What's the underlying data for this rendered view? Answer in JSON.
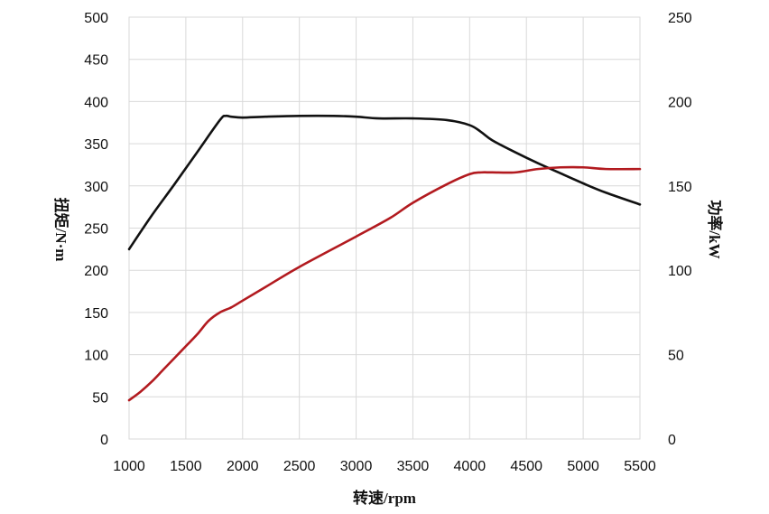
{
  "chart_data": {
    "type": "line",
    "title": "",
    "xlabel": "转速/rpm",
    "ylabel_left": "扭矩/N·m",
    "ylabel_right": "功率/kW",
    "xlim": [
      1000,
      5500
    ],
    "ylim_left": [
      0,
      500
    ],
    "ylim_right": [
      0,
      250
    ],
    "x_ticks": [
      1000,
      1500,
      2000,
      2500,
      3000,
      3500,
      4000,
      4500,
      5000,
      5500
    ],
    "y_left_ticks": [
      0,
      50,
      100,
      150,
      200,
      250,
      300,
      350,
      400,
      450,
      500
    ],
    "y_right_ticks": [
      0,
      50,
      100,
      150,
      200,
      250
    ],
    "grid": true,
    "series": [
      {
        "axis": "left",
        "color": "#111111",
        "x": [
          1000,
          1200,
          1400,
          1600,
          1800,
          1850,
          1900,
          2000,
          2200,
          2500,
          2800,
          3000,
          3200,
          3500,
          3800,
          4000,
          4100,
          4200,
          4400,
          4600,
          4800,
          5000,
          5200,
          5500
        ],
        "y": [
          225,
          265,
          302,
          340,
          378,
          383,
          382,
          381,
          382,
          383,
          383,
          382,
          380,
          380,
          378,
          372,
          364,
          354,
          340,
          327,
          315,
          303,
          292,
          278
        ]
      },
      {
        "axis": "right",
        "color": "#b21a1f",
        "x": [
          1000,
          1100,
          1200,
          1300,
          1400,
          1500,
          1600,
          1700,
          1800,
          1900,
          2000,
          2200,
          2500,
          3000,
          3300,
          3500,
          3800,
          4000,
          4100,
          4200,
          4400,
          4600,
          4800,
          5000,
          5200,
          5500
        ],
        "y": [
          23,
          28,
          34,
          41,
          48,
          55,
          62,
          70,
          75,
          78,
          82,
          90,
          102,
          120,
          131,
          140,
          151,
          157,
          158,
          158,
          158,
          160,
          161,
          161,
          160,
          160
        ]
      }
    ]
  }
}
